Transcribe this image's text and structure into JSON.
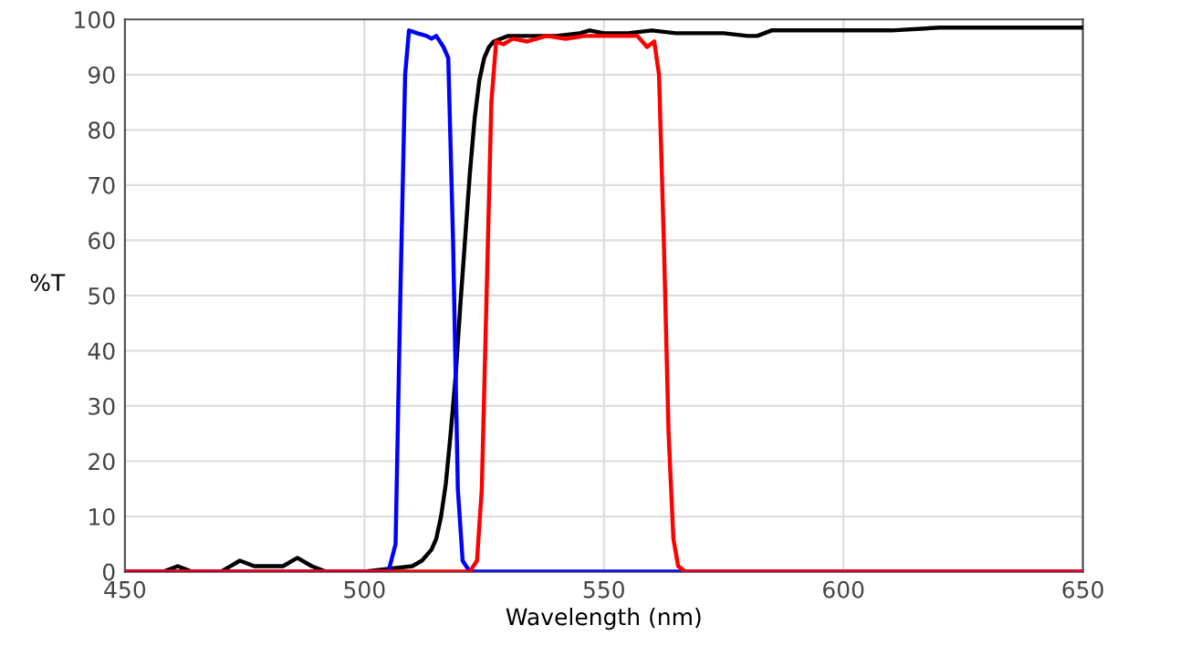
{
  "chart_data": {
    "type": "line",
    "xlabel": "Wavelength (nm)",
    "ylabel": "%T",
    "xlim": [
      450,
      650
    ],
    "ylim": [
      0,
      100
    ],
    "xticks": [
      450,
      500,
      550,
      600,
      650
    ],
    "yticks": [
      0,
      10,
      20,
      30,
      40,
      50,
      60,
      70,
      80,
      90,
      100
    ],
    "grid": true,
    "marker": "none",
    "line_style": "solid",
    "series": [
      {
        "color": "#000000",
        "x": [
          450,
          458,
          461,
          464,
          470,
          474,
          477,
          480,
          483,
          486,
          489,
          492,
          500,
          505,
          510,
          512,
          514,
          515,
          516,
          517,
          518,
          519,
          520,
          521,
          522,
          523,
          524,
          525,
          526,
          527,
          530,
          535,
          540,
          545,
          547,
          550,
          555,
          560,
          565,
          570,
          575,
          580,
          582,
          585,
          590,
          600,
          610,
          620,
          630,
          640,
          650
        ],
        "values": [
          0,
          0,
          1,
          0,
          0,
          2,
          1,
          1,
          1,
          2.5,
          1,
          0,
          0,
          0.5,
          1,
          2,
          4,
          6,
          10,
          16,
          25,
          35,
          48,
          60,
          72,
          82,
          89,
          93,
          95,
          96,
          97,
          97,
          97,
          97.5,
          98,
          97.5,
          97.5,
          98,
          97.5,
          97.5,
          97.5,
          97,
          97,
          98,
          98,
          98,
          98,
          98.5,
          98.5,
          98.5,
          98.5
        ]
      },
      {
        "color": "#0000ff",
        "x": [
          450,
          505,
          506.5,
          507.5,
          508.5,
          509.3,
          511,
          513,
          514,
          515,
          516.5,
          517.5,
          518.5,
          519.5,
          520.5,
          522,
          650
        ],
        "values": [
          0,
          0,
          5,
          50,
          90,
          98,
          97.5,
          97,
          96.5,
          97,
          95,
          93,
          60,
          15,
          2,
          0,
          0
        ]
      },
      {
        "color": "#ff0000",
        "x": [
          450,
          522,
          523.5,
          524.5,
          525.5,
          526.5,
          527.5,
          529,
          531,
          534,
          538,
          542,
          546,
          550,
          554,
          557,
          559,
          560.5,
          561.5,
          562.5,
          563.5,
          564.5,
          565.5,
          567,
          650
        ],
        "values": [
          0,
          0,
          2,
          15,
          50,
          85,
          96,
          95.5,
          96.5,
          96,
          97,
          96.5,
          97,
          97,
          97,
          97,
          95,
          96,
          90,
          60,
          25,
          6,
          1,
          0,
          0
        ]
      }
    ]
  }
}
